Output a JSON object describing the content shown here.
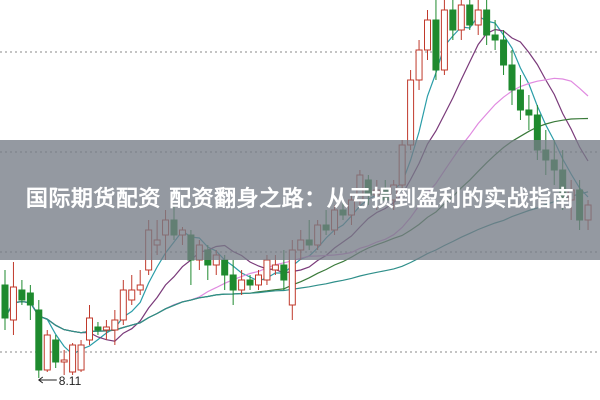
{
  "overlay": {
    "title": "国际期货配资 配资翻身之路：从亏损到盈利的实战指南"
  },
  "chart_data": {
    "type": "candlestick",
    "title": "",
    "xlabel": "",
    "ylabel": "",
    "ylim": [
      7.89,
      11.89
    ],
    "grid": true,
    "grid_lines": [
      11.37,
      10.37,
      9.37,
      8.37
    ],
    "annotation": {
      "text": "8.11",
      "candle_index": 4
    },
    "colors": {
      "up": "#c0392b",
      "down": "#1e8a2e",
      "ma": [
        "#2a9da8",
        "#7a3a7a",
        "#e08ae0",
        "#3a7a3a",
        "#2f8f8a"
      ]
    },
    "ma_periods": [
      5,
      10,
      20,
      30,
      60
    ],
    "candles": [
      [
        9.04,
        9.19,
        8.59,
        8.71
      ],
      [
        8.69,
        9.27,
        8.54,
        9.02
      ],
      [
        8.99,
        9.09,
        8.84,
        8.89
      ],
      [
        8.96,
        9.04,
        8.69,
        8.84
      ],
      [
        8.79,
        8.89,
        8.11,
        8.19
      ],
      [
        8.19,
        8.59,
        8.17,
        8.54
      ],
      [
        8.49,
        8.54,
        8.21,
        8.27
      ],
      [
        8.27,
        8.39,
        8.14,
        8.29
      ],
      [
        8.17,
        8.46,
        8.14,
        8.44
      ],
      [
        8.19,
        8.49,
        8.17,
        8.44
      ],
      [
        8.49,
        8.84,
        8.44,
        8.71
      ],
      [
        8.62,
        8.67,
        8.54,
        8.59
      ],
      [
        8.59,
        8.69,
        8.49,
        8.62
      ],
      [
        8.59,
        8.79,
        8.44,
        8.69
      ],
      [
        8.69,
        9.09,
        8.64,
        8.99
      ],
      [
        8.89,
        9.14,
        8.84,
        8.99
      ],
      [
        8.99,
        9.19,
        8.94,
        9.04
      ],
      [
        9.19,
        9.69,
        9.14,
        9.59
      ],
      [
        9.44,
        9.69,
        9.34,
        9.49
      ],
      [
        9.54,
        9.79,
        9.29,
        9.69
      ],
      [
        9.69,
        9.82,
        9.49,
        9.54
      ],
      [
        9.54,
        9.62,
        9.44,
        9.59
      ],
      [
        9.54,
        9.59,
        9.04,
        9.29
      ],
      [
        9.29,
        9.49,
        9.19,
        9.44
      ],
      [
        9.39,
        9.44,
        9.09,
        9.24
      ],
      [
        9.24,
        9.39,
        9.14,
        9.34
      ],
      [
        9.29,
        9.34,
        8.99,
        9.14
      ],
      [
        9.14,
        9.29,
        8.84,
        8.99
      ],
      [
        8.99,
        9.19,
        8.94,
        9.09
      ],
      [
        9.09,
        9.14,
        8.99,
        9.04
      ],
      [
        9.04,
        9.19,
        8.99,
        9.14
      ],
      [
        9.09,
        9.34,
        9.04,
        9.29
      ],
      [
        9.19,
        9.34,
        9.14,
        9.24
      ],
      [
        9.24,
        9.39,
        8.99,
        9.09
      ],
      [
        8.84,
        9.49,
        8.69,
        9.39
      ],
      [
        9.39,
        9.59,
        9.29,
        9.49
      ],
      [
        9.49,
        9.69,
        9.39,
        9.44
      ],
      [
        9.44,
        9.69,
        9.39,
        9.64
      ],
      [
        9.64,
        9.79,
        9.54,
        9.59
      ],
      [
        9.59,
        9.84,
        9.54,
        9.79
      ],
      [
        9.79,
        9.89,
        9.69,
        9.74
      ],
      [
        9.74,
        9.94,
        9.64,
        9.89
      ],
      [
        9.89,
        10.19,
        9.84,
        10.14
      ],
      [
        10.09,
        10.14,
        9.84,
        9.94
      ],
      [
        9.94,
        10.09,
        9.79,
        9.99
      ],
      [
        9.99,
        10.09,
        9.84,
        9.89
      ],
      [
        9.89,
        10.09,
        9.79,
        10.04
      ],
      [
        10.04,
        10.49,
        9.99,
        10.44
      ],
      [
        10.44,
        11.19,
        10.39,
        11.09
      ],
      [
        11.09,
        11.49,
        10.99,
        11.39
      ],
      [
        11.39,
        11.79,
        11.29,
        11.69
      ],
      [
        11.69,
        11.89,
        11.09,
        11.19
      ],
      [
        11.19,
        11.89,
        11.14,
        11.79
      ],
      [
        11.79,
        11.89,
        11.49,
        11.59
      ],
      [
        11.59,
        11.89,
        11.49,
        11.84
      ],
      [
        11.84,
        11.89,
        11.59,
        11.64
      ],
      [
        11.64,
        11.89,
        11.54,
        11.79
      ],
      [
        11.79,
        11.89,
        11.44,
        11.54
      ],
      [
        11.54,
        11.69,
        11.39,
        11.49
      ],
      [
        11.49,
        11.59,
        11.14,
        11.24
      ],
      [
        11.24,
        11.39,
        10.84,
        10.99
      ],
      [
        10.99,
        11.14,
        10.69,
        10.79
      ],
      [
        10.79,
        10.94,
        10.59,
        10.74
      ],
      [
        10.74,
        10.84,
        10.29,
        10.39
      ],
      [
        10.39,
        10.59,
        10.14,
        10.29
      ],
      [
        10.29,
        10.49,
        10.04,
        10.19
      ],
      [
        10.19,
        10.39,
        9.79,
        9.89
      ],
      [
        9.89,
        10.09,
        9.69,
        9.99
      ],
      [
        9.99,
        10.09,
        9.59,
        9.69
      ],
      [
        9.69,
        9.89,
        9.59,
        9.84
      ]
    ]
  }
}
